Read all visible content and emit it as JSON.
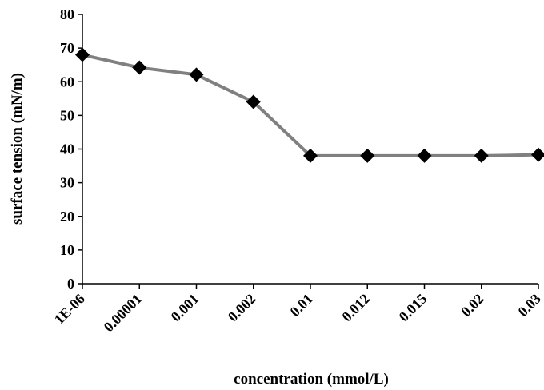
{
  "chart_data": {
    "type": "line",
    "title": "",
    "xlabel": "concentration (mmol/L)",
    "ylabel": "surface tension (mN/m)",
    "categories": [
      "1E-06",
      "0.00001",
      "0.001",
      "0.002",
      "0.01",
      "0.012",
      "0.015",
      "0.02",
      "0.03"
    ],
    "series": [
      {
        "values": [
          68,
          64.2,
          62.1,
          54,
          38,
          38,
          38,
          38,
          38.3
        ],
        "line_color": "#808080",
        "marker": "diamond",
        "marker_color": "#000000"
      }
    ],
    "ylim": [
      0,
      80
    ],
    "yticks": [
      0,
      10,
      20,
      30,
      40,
      50,
      60,
      70,
      80
    ],
    "grid": false,
    "legend": "none"
  }
}
